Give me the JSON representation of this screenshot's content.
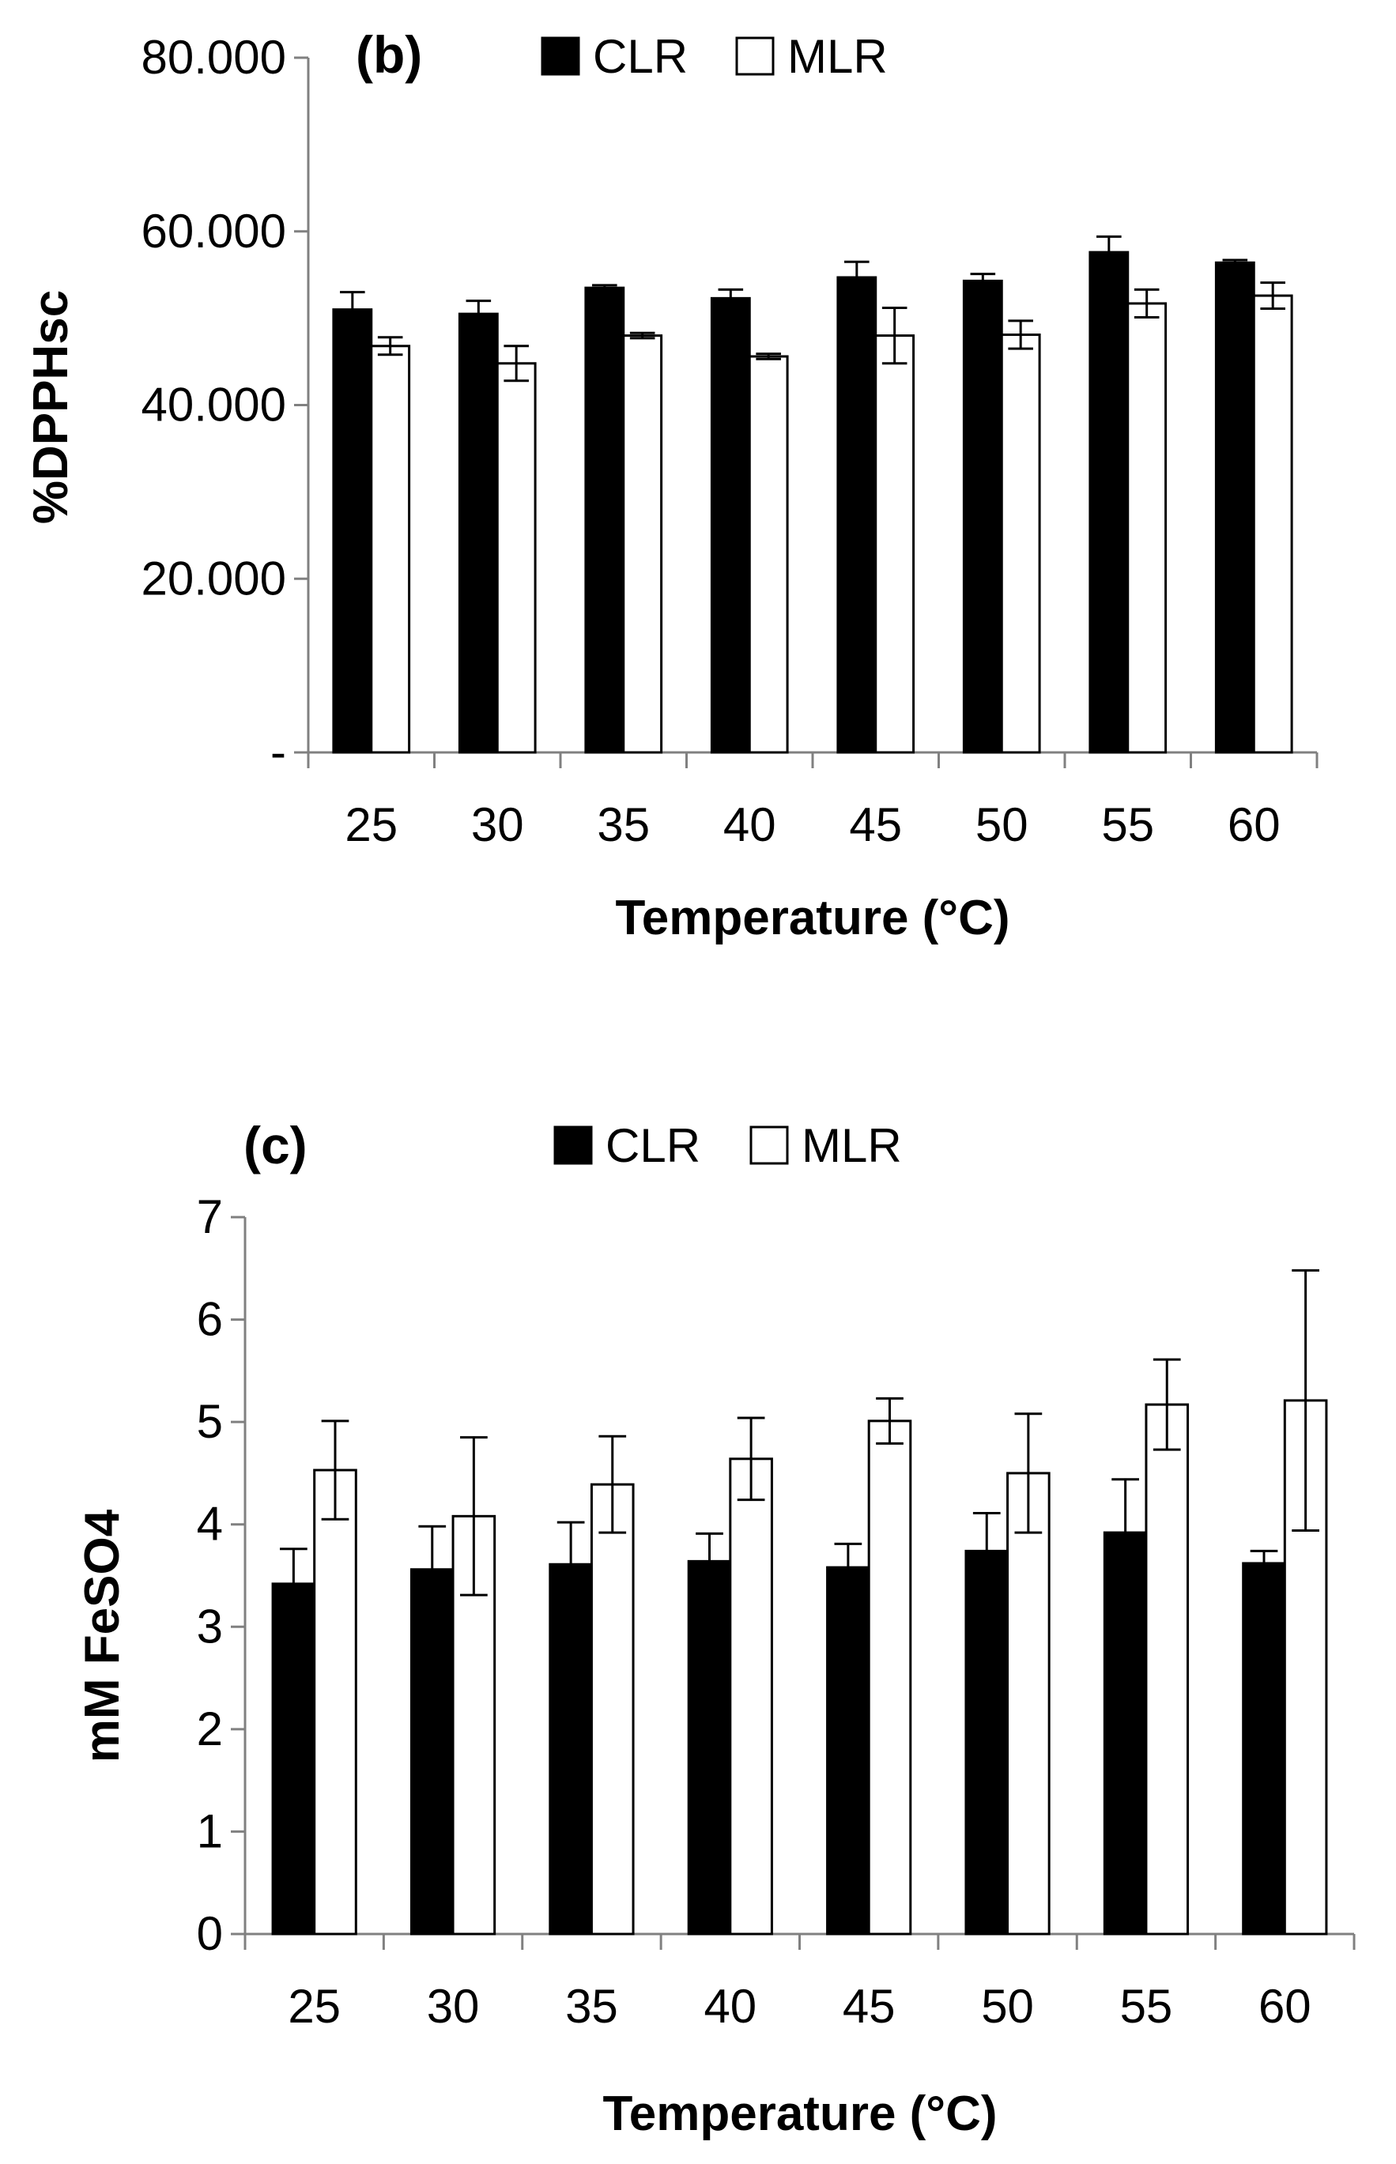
{
  "chart_data": [
    {
      "type": "bar",
      "panel_label": "(b)",
      "title": "",
      "xlabel": "Temperature (°C)",
      "ylabel": "%DPPHsc",
      "ylim": [
        0,
        80
      ],
      "yticks": [
        0,
        20,
        40,
        60,
        80
      ],
      "ytick_labels": [
        "-",
        "20.000",
        "40.000",
        "60.000",
        "80.000"
      ],
      "categories": [
        "25",
        "30",
        "35",
        "40",
        "45",
        "50",
        "55",
        "60"
      ],
      "legend_position": "top",
      "series": [
        {
          "name": "CLR",
          "color": "#000000",
          "values": [
            51.0,
            50.5,
            53.5,
            52.3,
            54.7,
            54.3,
            57.6,
            56.4
          ],
          "errors": [
            2.0,
            1.5,
            0.3,
            1.0,
            1.8,
            0.8,
            1.8,
            0.3
          ]
        },
        {
          "name": "MLR",
          "color": "#ffffff",
          "values": [
            46.8,
            44.8,
            48.0,
            45.6,
            48.0,
            48.1,
            51.7,
            52.6
          ],
          "errors": [
            1.0,
            2.0,
            0.3,
            0.3,
            3.2,
            1.6,
            1.6,
            1.5
          ]
        }
      ]
    },
    {
      "type": "bar",
      "panel_label": "(c)",
      "title": "",
      "xlabel": "Temperature (°C)",
      "ylabel": "mM FeSO4",
      "ylim": [
        0,
        7
      ],
      "yticks": [
        0,
        1,
        2,
        3,
        4,
        5,
        6,
        7
      ],
      "ytick_labels": [
        "0",
        "1",
        "2",
        "3",
        "4",
        "5",
        "6",
        "7"
      ],
      "categories": [
        "25",
        "30",
        "35",
        "40",
        "45",
        "50",
        "55",
        "60"
      ],
      "legend_position": "top",
      "series": [
        {
          "name": "CLR",
          "color": "#000000",
          "values": [
            3.42,
            3.56,
            3.61,
            3.64,
            3.58,
            3.74,
            3.92,
            3.62
          ],
          "errors": [
            0.34,
            0.42,
            0.41,
            0.27,
            0.23,
            0.37,
            0.52,
            0.12
          ]
        },
        {
          "name": "MLR",
          "color": "#ffffff",
          "values": [
            4.53,
            4.08,
            4.39,
            4.64,
            5.01,
            4.5,
            5.17,
            5.21
          ],
          "errors": [
            0.48,
            0.77,
            0.47,
            0.4,
            0.22,
            0.58,
            0.44,
            1.27
          ]
        }
      ]
    }
  ]
}
